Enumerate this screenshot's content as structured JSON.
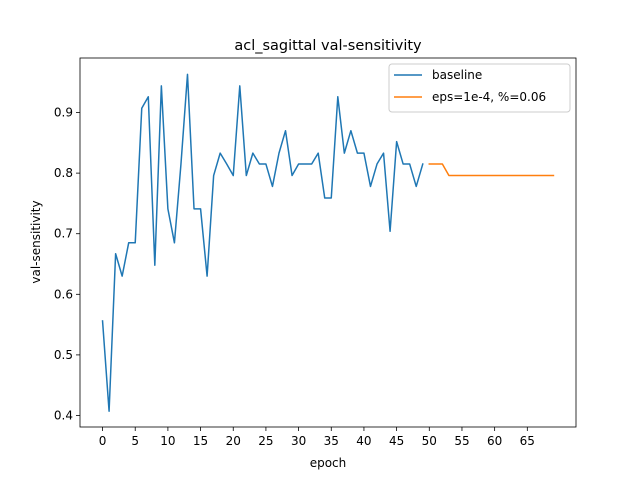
{
  "chart_data": {
    "type": "line",
    "title": "acl_sagittal val-sensitivity",
    "xlabel": "epoch",
    "ylabel": "val-sensitivity",
    "xlim": [
      -3.45,
      72.45
    ],
    "ylim": [
      0.381,
      0.99
    ],
    "xticks": [
      0,
      5,
      10,
      15,
      20,
      25,
      30,
      35,
      40,
      45,
      50,
      55,
      60,
      65
    ],
    "yticks": [
      0.4,
      0.5,
      0.6,
      0.7,
      0.8,
      0.9
    ],
    "grid": false,
    "legend_position": "top-right",
    "series": [
      {
        "name": "baseline",
        "color": "#1f77b4",
        "x": [
          0,
          1,
          2,
          3,
          4,
          5,
          6,
          7,
          8,
          9,
          10,
          11,
          12,
          13,
          14,
          15,
          16,
          17,
          18,
          19,
          20,
          21,
          22,
          23,
          24,
          25,
          26,
          27,
          28,
          29,
          30,
          31,
          32,
          33,
          34,
          35,
          36,
          37,
          38,
          39,
          40,
          41,
          42,
          43,
          44,
          45,
          46,
          47,
          48,
          49
        ],
        "y": [
          0.556,
          0.407,
          0.667,
          0.63,
          0.685,
          0.685,
          0.907,
          0.926,
          0.648,
          0.944,
          0.741,
          0.685,
          0.815,
          0.963,
          0.741,
          0.741,
          0.63,
          0.796,
          0.833,
          0.815,
          0.796,
          0.944,
          0.796,
          0.833,
          0.815,
          0.815,
          0.778,
          0.833,
          0.87,
          0.796,
          0.815,
          0.815,
          0.815,
          0.833,
          0.759,
          0.759,
          0.926,
          0.833,
          0.87,
          0.833,
          0.833,
          0.778,
          0.815,
          0.833,
          0.704,
          0.852,
          0.815,
          0.815,
          0.778,
          0.815
        ]
      },
      {
        "name": "eps=1e-4, %=0.06",
        "color": "#ff7f0e",
        "x": [
          50,
          51,
          52,
          53,
          54,
          55,
          56,
          57,
          58,
          59,
          60,
          61,
          62,
          63,
          64,
          65,
          66,
          67,
          68,
          69
        ],
        "y": [
          0.815,
          0.815,
          0.815,
          0.796,
          0.796,
          0.796,
          0.796,
          0.796,
          0.796,
          0.796,
          0.796,
          0.796,
          0.796,
          0.796,
          0.796,
          0.796,
          0.796,
          0.796,
          0.796,
          0.796
        ]
      }
    ]
  }
}
